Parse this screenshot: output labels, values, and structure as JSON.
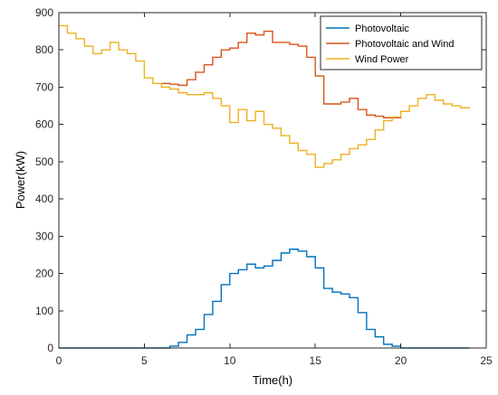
{
  "chart_data": {
    "type": "line",
    "step": true,
    "xlabel": "Time(h)",
    "ylabel": "Power(kW)",
    "xlim": [
      0,
      25
    ],
    "ylim": [
      0,
      900
    ],
    "xticks": [
      0,
      5,
      10,
      15,
      20,
      25
    ],
    "yticks": [
      0,
      100,
      200,
      300,
      400,
      500,
      600,
      700,
      800,
      900
    ],
    "legend_position": "top-right",
    "grid": false,
    "series": [
      {
        "name": "Photovoltaic",
        "color": "#0072BD",
        "x": [
          0,
          6,
          6.5,
          7,
          7.5,
          8,
          8.5,
          9,
          9.5,
          10,
          10.5,
          11,
          11.5,
          12,
          12.5,
          13,
          13.5,
          14,
          14.5,
          15,
          15.5,
          16,
          16.5,
          17,
          17.5,
          18,
          18.5,
          19,
          19.5,
          20,
          24
        ],
        "y": [
          0,
          0,
          5,
          15,
          35,
          50,
          90,
          125,
          170,
          200,
          210,
          225,
          215,
          220,
          235,
          255,
          265,
          260,
          245,
          215,
          160,
          150,
          145,
          135,
          95,
          50,
          30,
          10,
          5,
          0,
          0
        ]
      },
      {
        "name": "Photovoltaic and Wind",
        "color": "#D95319",
        "x": [
          6,
          6.5,
          7,
          7.5,
          8,
          8.5,
          9,
          9.5,
          10,
          10.5,
          11,
          11.5,
          12,
          12.5,
          13,
          13.5,
          14,
          14.5,
          15,
          15.5,
          16,
          16.5,
          17,
          17.5,
          18,
          18.5,
          19,
          19.5,
          20
        ],
        "y": [
          710,
          708,
          705,
          720,
          740,
          760,
          780,
          800,
          805,
          820,
          845,
          840,
          850,
          820,
          820,
          815,
          810,
          780,
          730,
          655,
          655,
          660,
          670,
          640,
          625,
          622,
          618,
          618,
          622
        ]
      },
      {
        "name": "Wind Power",
        "color": "#EDB120",
        "x": [
          0,
          0.5,
          1,
          1.5,
          2,
          2.5,
          3,
          3.5,
          4,
          4.5,
          5,
          5.5,
          6,
          6.5,
          7,
          7.5,
          8,
          8.5,
          9,
          9.5,
          10,
          10.5,
          11,
          11.5,
          12,
          12.5,
          13,
          13.5,
          14,
          14.5,
          15,
          15.5,
          16,
          16.5,
          17,
          17.5,
          18,
          18.5,
          19,
          19.5,
          20,
          20.5,
          21,
          21.5,
          22,
          22.5,
          23,
          23.5,
          24
        ],
        "y": [
          865,
          845,
          830,
          810,
          790,
          800,
          820,
          800,
          790,
          770,
          725,
          710,
          700,
          695,
          685,
          680,
          680,
          685,
          670,
          650,
          605,
          640,
          610,
          635,
          600,
          590,
          570,
          550,
          530,
          520,
          485,
          495,
          505,
          520,
          535,
          545,
          560,
          585,
          610,
          620,
          635,
          650,
          670,
          680,
          665,
          655,
          650,
          645,
          642
        ]
      }
    ]
  }
}
